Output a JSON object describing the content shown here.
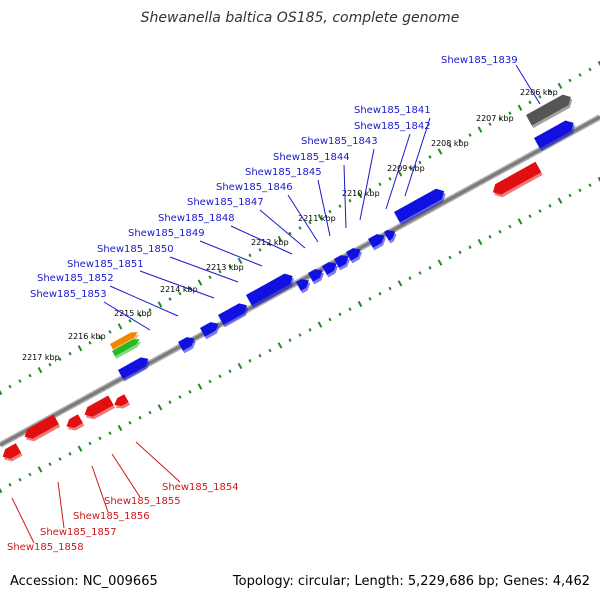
{
  "title": "Shewanella baltica OS185, complete genome",
  "accession": "Accession: NC_009665",
  "topology": "Topology: circular; Length: 5,229,686 bp; Genes: 4,462",
  "colors": {
    "forward": "#1010e0",
    "reverse": "#e01010",
    "grey": "#555555",
    "orange": "#ee8800",
    "green": "#22bb22",
    "tick": "#228822",
    "backbone": "#888888",
    "forward_label": "#1a1acc",
    "reverse_label": "#cc1a1a"
  },
  "ruler": [
    "2206 kbp",
    "2207 kbp",
    "2208 kbp",
    "2209 kbp",
    "2210 kbp",
    "2211 kbp",
    "2212 kbp",
    "2213 kbp",
    "2214 kbp",
    "2215 kbp",
    "2216 kbp",
    "2217 kbp"
  ],
  "forward_labels": [
    "Shew185_1839",
    "Shew185_1841",
    "Shew185_1842",
    "Shew185_1843",
    "Shew185_1844",
    "Shew185_1845",
    "Shew185_1846",
    "Shew185_1847",
    "Shew185_1848",
    "Shew185_1849",
    "Shew185_1850",
    "Shew185_1851",
    "Shew185_1852",
    "Shew185_1853"
  ],
  "reverse_labels": [
    "Shew185_1854",
    "Shew185_1855",
    "Shew185_1856",
    "Shew185_1857",
    "Shew185_1858"
  ]
}
